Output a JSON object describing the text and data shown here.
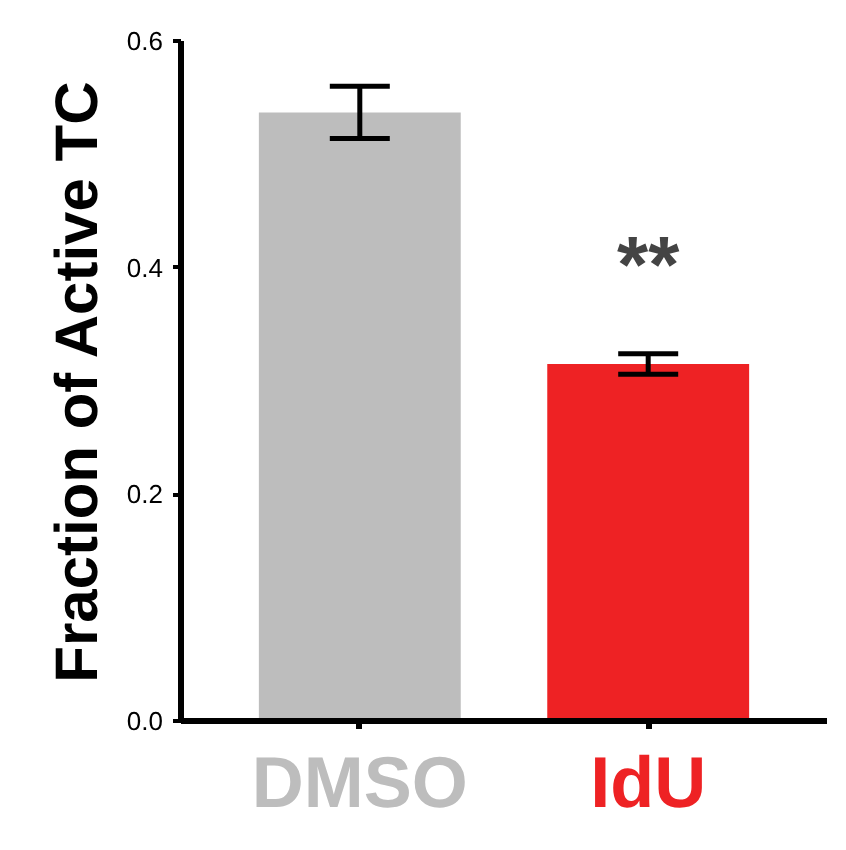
{
  "chart_data": {
    "type": "bar",
    "ylabel": "Fraction of Active TC",
    "categories": [
      "DMSO",
      "IdU"
    ],
    "values": [
      0.537,
      0.315
    ],
    "errors": [
      0.023,
      0.009
    ],
    "colors": [
      "#bdbdbd",
      "#ee2224"
    ],
    "ylim": [
      0,
      0.6
    ],
    "yticks": [
      {
        "value": 0,
        "label": "0.0"
      },
      0.2,
      0.4,
      0.6
    ],
    "annotations": [
      "**"
    ],
    "grid": false
  }
}
